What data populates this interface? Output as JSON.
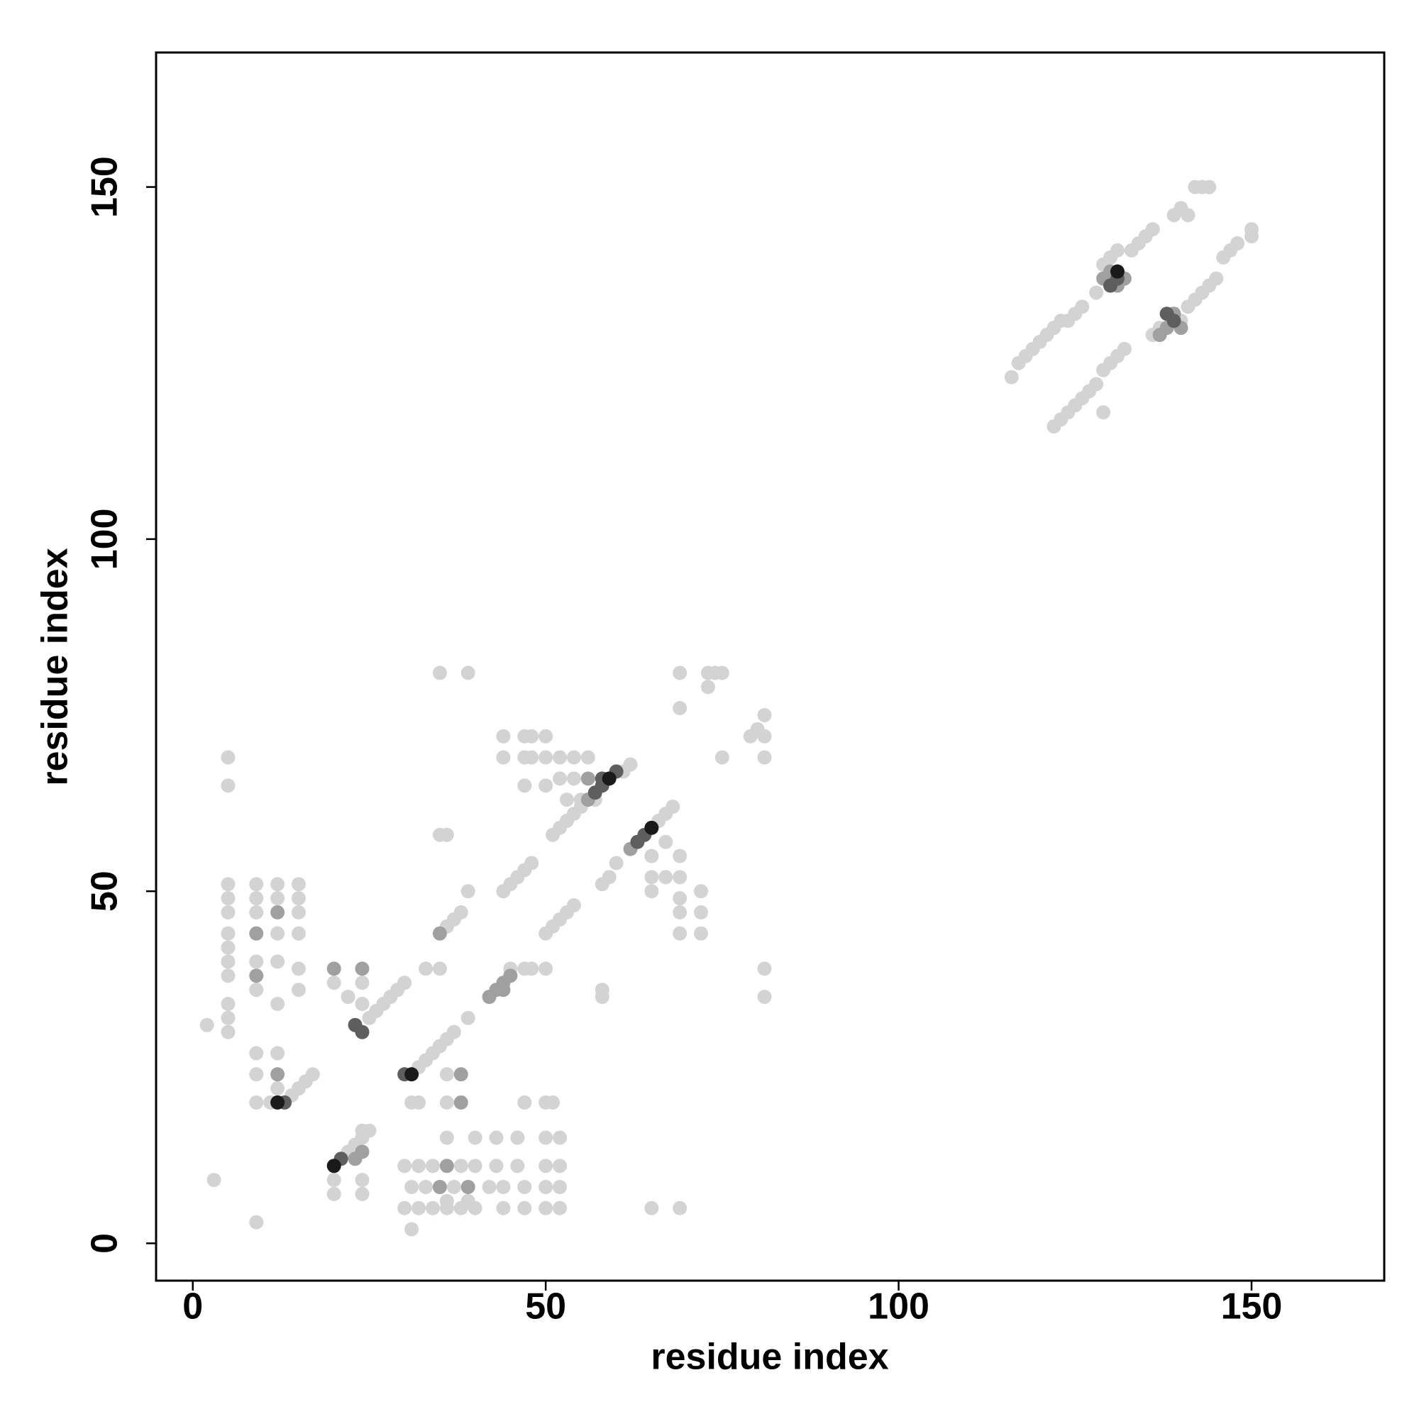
{
  "chart_data": {
    "type": "scatter",
    "xlabel": "residue index",
    "ylabel": "residue index",
    "xlim": [
      -5.2,
      168.8
    ],
    "ylim": [
      -5.3,
      169.1
    ],
    "xticks": [
      0,
      50,
      100,
      150
    ],
    "yticks": [
      0,
      50,
      100,
      150
    ],
    "series": [
      {
        "color": "#d3d3d3",
        "x": [
          116,
          117,
          118,
          119,
          120,
          121,
          122,
          123,
          124,
          125,
          126,
          128,
          129,
          130,
          131,
          133,
          134,
          135,
          136,
          139,
          140,
          141,
          142,
          143,
          144,
          122,
          123,
          124,
          125,
          126,
          127,
          128,
          129,
          130,
          131,
          132,
          136,
          137,
          140,
          141,
          142,
          143,
          144,
          145,
          146,
          147,
          148,
          150,
          150,
          129,
          14,
          15,
          16,
          17,
          25,
          26,
          27,
          28,
          29,
          30,
          36,
          37,
          38,
          39,
          44,
          45,
          46,
          47,
          48,
          51,
          52,
          53,
          54,
          55,
          61,
          62,
          22,
          23,
          24,
          25,
          32,
          33,
          34,
          35,
          36,
          37,
          39,
          50,
          51,
          52,
          53,
          54,
          58,
          59,
          60,
          66,
          67,
          68,
          5,
          5,
          5,
          5,
          5,
          5,
          5,
          5,
          5,
          5,
          9,
          9,
          9,
          9,
          9,
          12,
          12,
          12,
          12,
          12,
          15,
          15,
          15,
          15,
          15,
          15,
          5,
          5,
          2,
          3,
          9,
          9,
          9,
          9,
          12,
          12,
          11,
          20,
          22,
          24,
          24,
          20,
          20,
          24,
          24,
          24,
          30,
          32,
          34,
          36,
          38,
          40,
          44,
          47,
          50,
          52,
          31,
          33,
          37,
          42,
          44,
          47,
          50,
          52,
          30,
          32,
          34,
          38,
          40,
          43,
          46,
          50,
          52,
          36,
          40,
          43,
          46,
          50,
          52,
          31,
          36,
          39,
          31,
          32,
          36,
          36,
          47,
          50,
          51,
          33,
          35,
          45,
          47,
          48,
          50,
          35,
          36,
          35,
          39,
          44,
          47,
          48,
          50,
          44,
          47,
          48,
          50,
          52,
          54,
          56,
          47,
          50,
          52,
          54,
          53,
          55,
          57,
          65,
          65,
          65,
          67,
          67,
          69,
          69,
          69,
          69,
          69,
          72,
          72,
          72,
          69,
          69,
          73,
          74,
          75,
          73,
          75,
          79,
          80,
          81,
          81,
          81,
          81,
          81,
          58,
          58,
          65,
          69
        ],
        "values": [
          123,
          125,
          126,
          127,
          128,
          129,
          130,
          131,
          131,
          132,
          133,
          135,
          139,
          140,
          141,
          141,
          142,
          143,
          144,
          146,
          147,
          146,
          150,
          150,
          150,
          116,
          117,
          118,
          119,
          120,
          121,
          122,
          124,
          125,
          126,
          127,
          129,
          130,
          131,
          133,
          134,
          135,
          136,
          137,
          140,
          141,
          142,
          143,
          144,
          118,
          21,
          22,
          23,
          24,
          32,
          33,
          34,
          35,
          36,
          37,
          45,
          46,
          47,
          50,
          50,
          51,
          52,
          53,
          54,
          58,
          59,
          60,
          61,
          62,
          67,
          68,
          13,
          14,
          15,
          16,
          25,
          26,
          27,
          28,
          29,
          30,
          32,
          44,
          45,
          46,
          47,
          48,
          51,
          52,
          54,
          60,
          61,
          62,
          51,
          49,
          47,
          44,
          42,
          40,
          38,
          34,
          32,
          30,
          51,
          49,
          47,
          40,
          36,
          51,
          49,
          44,
          40,
          34,
          51,
          49,
          47,
          44,
          39,
          36,
          65,
          69,
          31,
          9,
          3,
          27,
          24,
          20,
          27,
          22,
          20,
          37,
          35,
          34,
          37,
          9,
          7,
          9,
          7,
          16,
          5,
          5,
          5,
          5,
          5,
          5,
          5,
          5,
          5,
          5,
          8,
          8,
          8,
          8,
          8,
          8,
          8,
          8,
          11,
          11,
          11,
          11,
          11,
          11,
          11,
          11,
          11,
          15,
          15,
          15,
          15,
          15,
          15,
          2,
          6,
          6,
          20,
          20,
          20,
          24,
          20,
          20,
          20,
          39,
          39,
          39,
          39,
          39,
          39,
          58,
          58,
          81,
          81,
          72,
          72,
          72,
          72,
          69,
          69,
          69,
          69,
          69,
          69,
          69,
          65,
          65,
          66,
          66,
          63,
          63,
          63,
          55,
          52,
          50,
          57,
          52,
          55,
          52,
          49,
          47,
          44,
          50,
          47,
          44,
          76,
          81,
          81,
          81,
          81,
          79,
          69,
          72,
          73,
          75,
          72,
          69,
          39,
          35,
          35,
          36,
          5,
          5
        ]
      },
      {
        "color": "#a0a0a0",
        "x": [
          129,
          130,
          131,
          132,
          137,
          138,
          139,
          140,
          35,
          56,
          42,
          43,
          44,
          45,
          62,
          9,
          9,
          12,
          12,
          20,
          24,
          23,
          24,
          35,
          39,
          36,
          38,
          38,
          44,
          56
        ],
        "values": [
          137,
          138,
          136,
          137,
          129,
          130,
          132,
          130,
          44,
          63,
          35,
          36,
          37,
          38,
          56,
          44,
          38,
          47,
          24,
          39,
          39,
          12,
          13,
          8,
          8,
          11,
          20,
          24,
          36,
          66
        ]
      },
      {
        "color": "#5e5e5e",
        "x": [
          130,
          131,
          138,
          139,
          13,
          24,
          57,
          58,
          60,
          21,
          30,
          63,
          64,
          23,
          58
        ],
        "values": [
          136,
          137,
          132,
          131,
          20,
          30,
          64,
          65,
          67,
          12,
          24,
          57,
          58,
          31,
          66
        ]
      },
      {
        "color": "#1a1a1a",
        "x": [
          12,
          59,
          20,
          31,
          65,
          131
        ],
        "values": [
          20,
          66,
          11,
          24,
          59,
          138
        ]
      }
    ]
  }
}
